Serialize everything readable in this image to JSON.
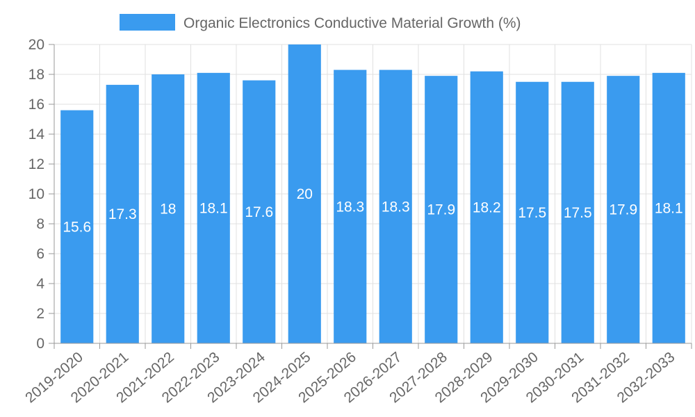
{
  "chart_data": {
    "type": "bar",
    "categories": [
      "2019-2020",
      "2020-2021",
      "2021-2022",
      "2022-2023",
      "2023-2024",
      "2024-2025",
      "2025-2026",
      "2026-2027",
      "2027-2028",
      "2028-2029",
      "2029-2030",
      "2030-2031",
      "2031-2032",
      "2032-2033"
    ],
    "series": [
      {
        "name": "Organic Electronics Conductive Material Growth (%)",
        "values": [
          15.6,
          17.3,
          18,
          18.1,
          17.6,
          20,
          18.3,
          18.3,
          17.9,
          18.2,
          17.5,
          17.5,
          17.9,
          18.1
        ],
        "color": "#3a9bef"
      }
    ],
    "ylim": [
      0,
      20
    ],
    "yticks": [
      0,
      2,
      4,
      6,
      8,
      10,
      12,
      14,
      16,
      18,
      20
    ],
    "grid": true,
    "legend_position": "top-center",
    "data_labels": true
  }
}
